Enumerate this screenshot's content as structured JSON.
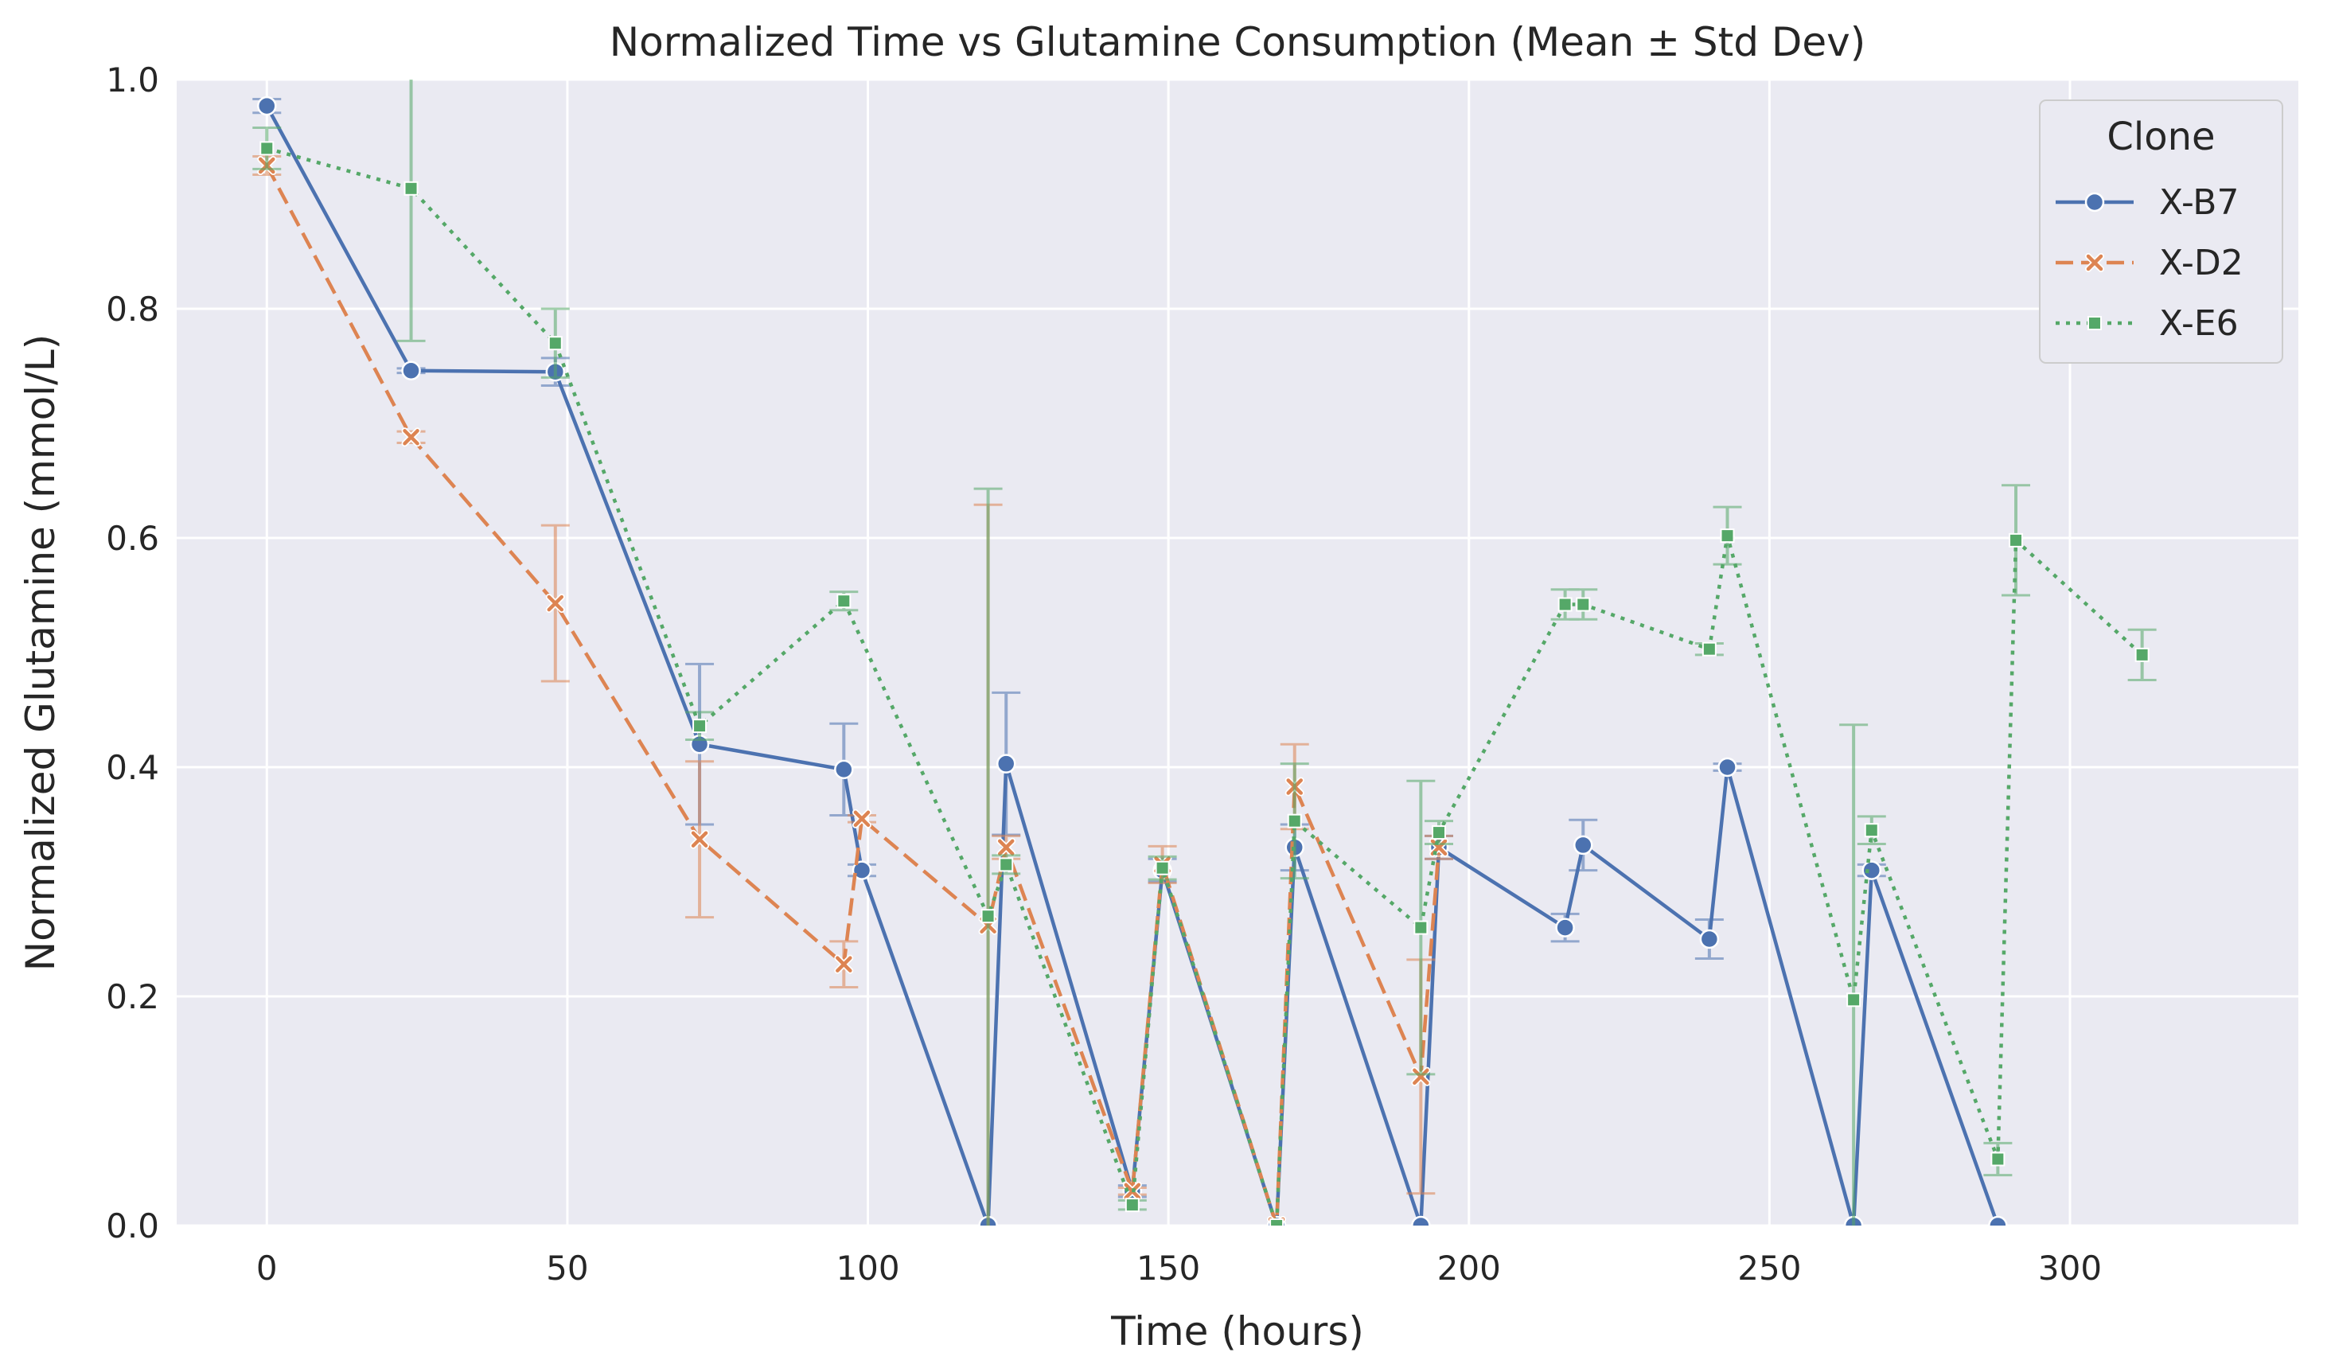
{
  "chart_data": {
    "type": "line",
    "title": "Normalized Time vs Glutamine Consumption (Mean ± Std Dev)",
    "xlabel": "Time (hours)",
    "ylabel": "Normalized Glutamine (mmol/L)",
    "xlim": [
      -15,
      338
    ],
    "ylim": [
      0,
      1
    ],
    "xticks": [
      0,
      50,
      100,
      150,
      200,
      250,
      300
    ],
    "yticks": [
      0.0,
      0.2,
      0.4,
      0.6,
      0.8,
      1.0
    ],
    "xtick_labels": [
      "0",
      "50",
      "100",
      "150",
      "200",
      "250",
      "300"
    ],
    "ytick_labels": [
      "0.0",
      "0.2",
      "0.4",
      "0.6",
      "0.8",
      "1.0"
    ],
    "grid": true,
    "legend": {
      "title": "Clone",
      "position": "top-right"
    },
    "series": [
      {
        "name": "X-B7",
        "color": "#4c72b0",
        "dash": "solid",
        "marker": "circle",
        "points": [
          {
            "x": 0,
            "y": 0.977,
            "err": 0.006
          },
          {
            "x": 24,
            "y": 0.746,
            "err": 0.002
          },
          {
            "x": 48,
            "y": 0.745,
            "err": 0.012
          },
          {
            "x": 72,
            "y": 0.42,
            "err": 0.07
          },
          {
            "x": 96,
            "y": 0.398,
            "err": 0.04
          },
          {
            "x": 99,
            "y": 0.31,
            "err": 0.005
          },
          {
            "x": 120,
            "y": 0.0,
            "err": 0.0
          },
          {
            "x": 123,
            "y": 0.403,
            "err": 0.062
          },
          {
            "x": 144,
            "y": 0.03,
            "err": 0.005
          },
          {
            "x": 149,
            "y": 0.31,
            "err": 0.01
          },
          {
            "x": 168,
            "y": 0.0,
            "err": 0.0
          },
          {
            "x": 171,
            "y": 0.33,
            "err": 0.02
          },
          {
            "x": 192,
            "y": 0.0,
            "err": 0.0
          },
          {
            "x": 195,
            "y": 0.33,
            "err": 0.01
          },
          {
            "x": 216,
            "y": 0.26,
            "err": 0.012
          },
          {
            "x": 219,
            "y": 0.332,
            "err": 0.022
          },
          {
            "x": 240,
            "y": 0.25,
            "err": 0.017
          },
          {
            "x": 243,
            "y": 0.4,
            "err": 0.003
          },
          {
            "x": 264,
            "y": 0.0,
            "err": 0.0
          },
          {
            "x": 267,
            "y": 0.31,
            "err": 0.005
          },
          {
            "x": 288,
            "y": 0.0,
            "err": 0.0
          }
        ]
      },
      {
        "name": "X-D2",
        "color": "#dd8452",
        "dash": "dashed",
        "marker": "x",
        "points": [
          {
            "x": 0,
            "y": 0.925,
            "err": 0.008
          },
          {
            "x": 24,
            "y": 0.688,
            "err": 0.005
          },
          {
            "x": 48,
            "y": 0.543,
            "err": 0.068
          },
          {
            "x": 72,
            "y": 0.337,
            "err": 0.068
          },
          {
            "x": 96,
            "y": 0.228,
            "err": 0.02
          },
          {
            "x": 99,
            "y": 0.355,
            "err": 0.003
          },
          {
            "x": 120,
            "y": 0.262,
            "err": 0.367
          },
          {
            "x": 123,
            "y": 0.33,
            "err": 0.01
          },
          {
            "x": 144,
            "y": 0.03,
            "err": 0.003
          },
          {
            "x": 149,
            "y": 0.315,
            "err": 0.016
          },
          {
            "x": 168,
            "y": 0.0,
            "err": 0.0
          },
          {
            "x": 171,
            "y": 0.383,
            "err": 0.037
          },
          {
            "x": 192,
            "y": 0.13,
            "err": 0.102
          },
          {
            "x": 195,
            "y": 0.33,
            "err": 0.01
          }
        ]
      },
      {
        "name": "X-E6",
        "color": "#55a868",
        "dash": "dotted",
        "marker": "square",
        "points": [
          {
            "x": 0,
            "y": 0.94,
            "err": 0.018
          },
          {
            "x": 24,
            "y": 0.905,
            "err": 0.133
          },
          {
            "x": 48,
            "y": 0.77,
            "err": 0.03
          },
          {
            "x": 72,
            "y": 0.436,
            "err": 0.012
          },
          {
            "x": 96,
            "y": 0.545,
            "err": 0.008
          },
          {
            "x": 120,
            "y": 0.27,
            "err": 0.373
          },
          {
            "x": 123,
            "y": 0.315,
            "err": 0.008
          },
          {
            "x": 144,
            "y": 0.018,
            "err": 0.004
          },
          {
            "x": 149,
            "y": 0.312,
            "err": 0.01
          },
          {
            "x": 168,
            "y": 0.0,
            "err": 0.0
          },
          {
            "x": 171,
            "y": 0.353,
            "err": 0.05
          },
          {
            "x": 192,
            "y": 0.26,
            "err": 0.128
          },
          {
            "x": 195,
            "y": 0.343,
            "err": 0.01
          },
          {
            "x": 216,
            "y": 0.542,
            "err": 0.013
          },
          {
            "x": 219,
            "y": 0.542,
            "err": 0.013
          },
          {
            "x": 240,
            "y": 0.503,
            "err": 0.005
          },
          {
            "x": 243,
            "y": 0.602,
            "err": 0.025
          },
          {
            "x": 264,
            "y": 0.197,
            "err": 0.24
          },
          {
            "x": 267,
            "y": 0.345,
            "err": 0.012
          },
          {
            "x": 288,
            "y": 0.058,
            "err": 0.014
          },
          {
            "x": 291,
            "y": 0.598,
            "err": 0.048
          },
          {
            "x": 312,
            "y": 0.498,
            "err": 0.022
          }
        ]
      }
    ]
  }
}
